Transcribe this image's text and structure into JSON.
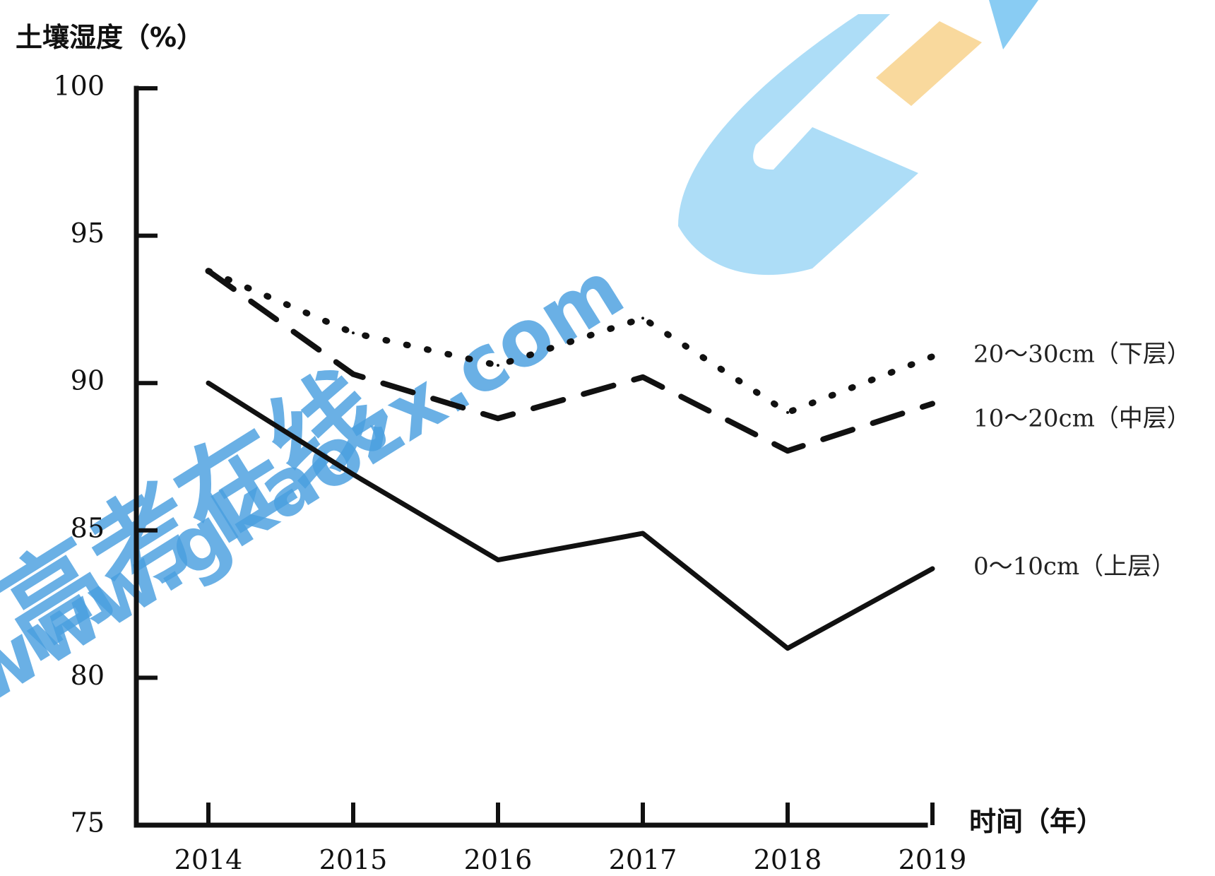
{
  "chart_data": {
    "type": "line",
    "title": "",
    "ylabel": "土壤湿度（%）",
    "xlabel": "时间（年）",
    "ylim": [
      75,
      100
    ],
    "yticks": [
      75,
      80,
      85,
      90,
      95,
      100
    ],
    "x": [
      "2014",
      "2015",
      "2016",
      "2017",
      "2018",
      "2019"
    ],
    "grid": false,
    "legend": "labels at right end of each line",
    "series": [
      {
        "name": "20～30cm（下层）",
        "style": "dotted",
        "values": [
          93.8,
          91.7,
          90.6,
          92.2,
          89.0,
          90.9
        ]
      },
      {
        "name": "10～20cm（中层）",
        "style": "dashed",
        "values": [
          93.8,
          90.3,
          88.8,
          90.2,
          87.7,
          89.3
        ]
      },
      {
        "name": "0～10cm（上层）",
        "style": "solid",
        "values": [
          90.0,
          86.9,
          84.0,
          84.9,
          81.0,
          83.7
        ]
      }
    ],
    "colors": {
      "lines": "#111111"
    }
  },
  "watermark": {
    "text": "高考在线",
    "url_text": "www.gkaozx.com",
    "colors": {
      "blue": "#29a3e6",
      "light_blue": "#9fd3f4",
      "orange": "#f7d28c"
    }
  }
}
